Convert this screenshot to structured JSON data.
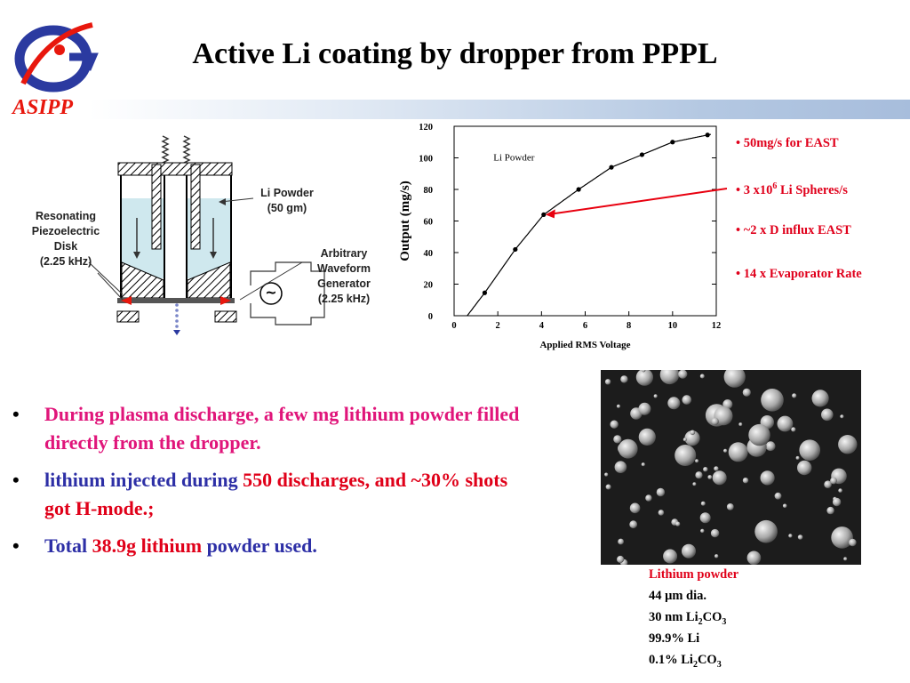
{
  "title": "Active Li coating by dropper from PPPL",
  "brand": "ASIPP",
  "apparatus": {
    "resonating_label": [
      "Resonating",
      "Piezoelectric",
      "Disk",
      "(2.25 kHz)"
    ],
    "li_powder_label": [
      "Li Powder",
      "(50 gm)"
    ],
    "generator_label": [
      "Arbitrary",
      "Waveform",
      "Generator",
      "(2.25 kHz)"
    ],
    "generator_symbol": "~"
  },
  "chart_data": {
    "type": "scatter",
    "series": [
      {
        "name": "Li Powder",
        "x": [
          1.4,
          2.8,
          4.1,
          5.7,
          7.2,
          8.6,
          10.0,
          11.6
        ],
        "y": [
          14.5,
          42,
          64,
          80,
          94,
          102,
          110,
          114.5
        ]
      }
    ],
    "fit_curve": true,
    "xlabel": "Applied RMS Voltage",
    "ylabel": "Output (mg/s)",
    "xlim": [
      0,
      12
    ],
    "ylim": [
      0,
      120
    ],
    "xticks": [
      "0",
      "2",
      "4",
      "6",
      "8",
      "10",
      "12"
    ],
    "yticks": [
      "0",
      "20",
      "40",
      "60",
      "80",
      "100",
      "120"
    ],
    "highlight_point": {
      "x": 4.1,
      "y": 64
    },
    "grid": false
  },
  "annotations": {
    "a1": "• 50mg/s for EAST",
    "a2_pre": "• 3 x10",
    "a2_sup": "6",
    "a2_post": " Li Spheres/s",
    "a3": "•  ~2 x D influx EAST",
    "a4": "•  14 x Evaporator Rate",
    "arrow_color": "#e8000f"
  },
  "bullets": {
    "marker": "•",
    "b1": "During plasma discharge, a few mg lithium powder filled directly from the dropper.",
    "b2_blue": "lithium injected during ",
    "b2_red": "550 discharges, and ~30% shots got H-mode.;",
    "b3_blue1": "Total ",
    "b3_red": "38.9g lithium",
    "b3_blue2": " powder used."
  },
  "caption": {
    "line1": "Lithium powder",
    "line2": "44 μm dia.",
    "line3_pre": "30 nm Li",
    "line3_sub1": "2",
    "line3_mid": "CO",
    "line3_sub2": "3",
    "line4": "99.9% Li",
    "line5_pre": "0.1% Li",
    "line5_sub1": "2",
    "line5_mid": "CO",
    "line5_sub2": "3"
  },
  "colors": {
    "brand_red": "#e8170d",
    "logo_blue": "#2b3aa0",
    "bullet_pink": "#e0157a",
    "bullet_blue": "#2d2fa6",
    "bullet_red": "#e00019",
    "liquid": "#cfe8ee"
  }
}
